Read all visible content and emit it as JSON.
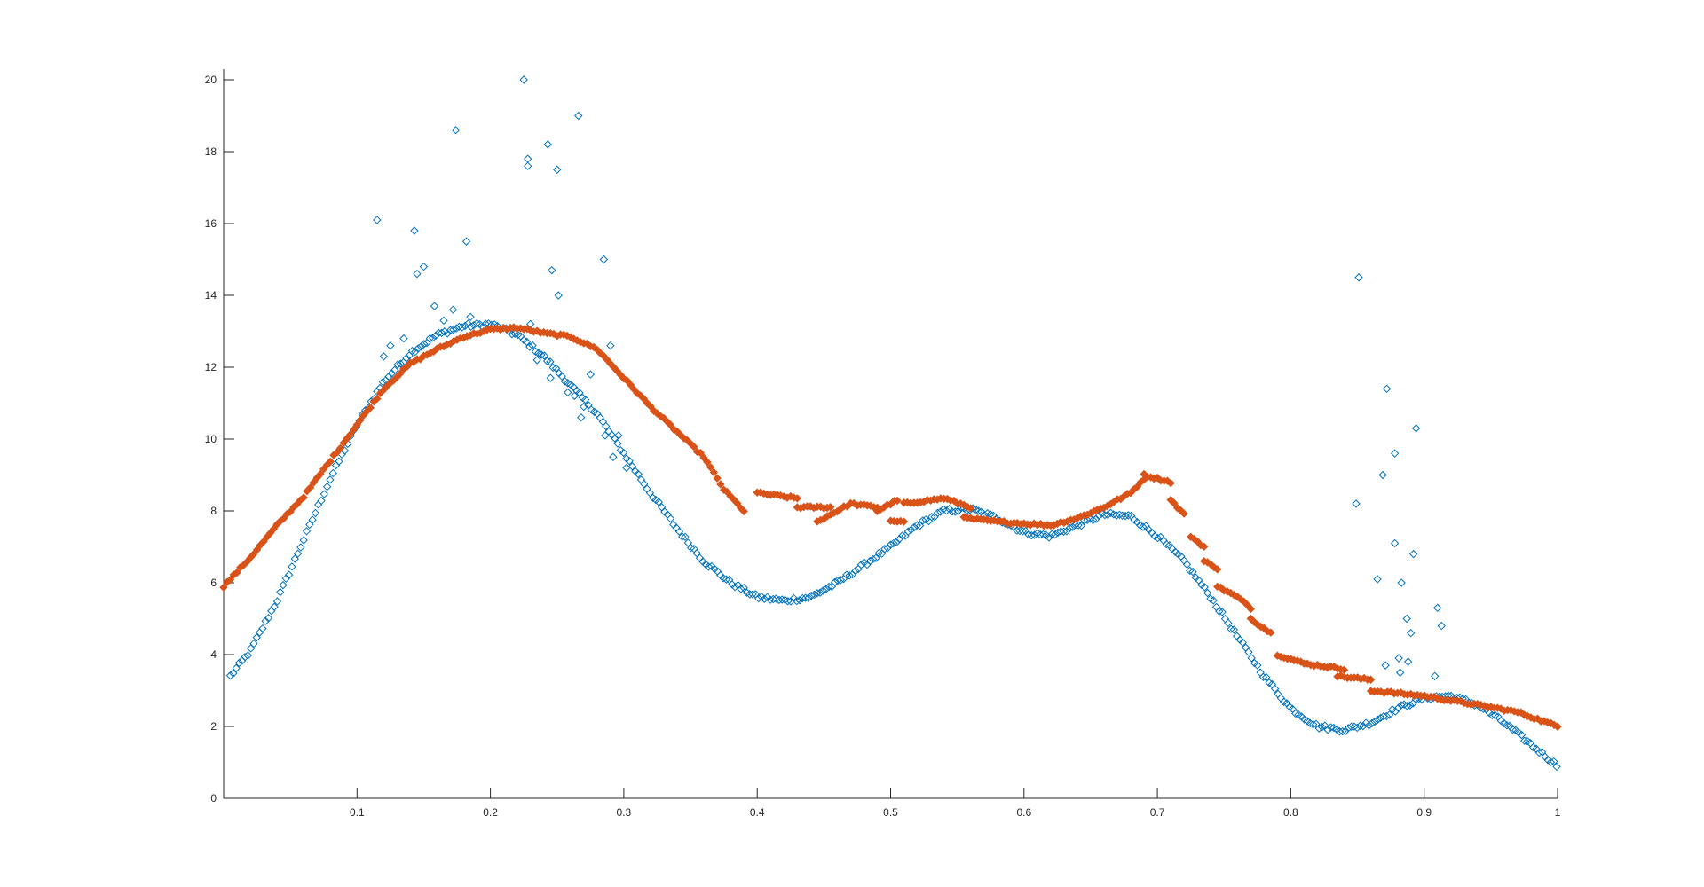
{
  "chart_data": {
    "type": "scatter",
    "title": "",
    "xlabel": "",
    "ylabel": "",
    "xlim": [
      0.0,
      1.0
    ],
    "ylim": [
      0,
      20
    ],
    "grid": false,
    "legend": "none",
    "x_ticks": [
      0.1,
      0.2,
      0.3,
      0.4,
      0.5,
      0.6,
      0.7,
      0.8,
      0.9,
      1.0
    ],
    "x_tick_labels": [
      "0.1",
      "0.2",
      "0.3",
      "0.4",
      "0.5",
      "0.6",
      "0.7",
      "0.8",
      "0.9",
      "1"
    ],
    "y_ticks": [
      0,
      2,
      4,
      6,
      8,
      10,
      12,
      14,
      16,
      18,
      20
    ],
    "y_tick_labels": [
      "0",
      "2",
      "4",
      "6",
      "8",
      "10",
      "12",
      "14",
      "16",
      "18",
      "20"
    ],
    "series": [
      {
        "marker": "diamond-open",
        "color": "#0072BD",
        "curve": [
          [
            0.005,
            3.4
          ],
          [
            0.02,
            4.1
          ],
          [
            0.04,
            5.5
          ],
          [
            0.06,
            7.2
          ],
          [
            0.08,
            8.9
          ],
          [
            0.1,
            10.4
          ],
          [
            0.12,
            11.6
          ],
          [
            0.14,
            12.4
          ],
          [
            0.16,
            12.9
          ],
          [
            0.18,
            13.15
          ],
          [
            0.2,
            13.2
          ],
          [
            0.22,
            12.9
          ],
          [
            0.24,
            12.3
          ],
          [
            0.26,
            11.5
          ],
          [
            0.28,
            10.7
          ],
          [
            0.3,
            9.6
          ],
          [
            0.32,
            8.5
          ],
          [
            0.34,
            7.5
          ],
          [
            0.36,
            6.6
          ],
          [
            0.38,
            6.0
          ],
          [
            0.4,
            5.6
          ],
          [
            0.42,
            5.5
          ],
          [
            0.44,
            5.6
          ],
          [
            0.46,
            6.0
          ],
          [
            0.48,
            6.5
          ],
          [
            0.5,
            7.0
          ],
          [
            0.52,
            7.6
          ],
          [
            0.54,
            8.0
          ],
          [
            0.56,
            8.05
          ],
          [
            0.58,
            7.8
          ],
          [
            0.6,
            7.4
          ],
          [
            0.62,
            7.3
          ],
          [
            0.64,
            7.6
          ],
          [
            0.66,
            7.9
          ],
          [
            0.68,
            7.85
          ],
          [
            0.7,
            7.3
          ],
          [
            0.72,
            6.6
          ],
          [
            0.74,
            5.6
          ],
          [
            0.76,
            4.5
          ],
          [
            0.78,
            3.4
          ],
          [
            0.8,
            2.5
          ],
          [
            0.82,
            2.0
          ],
          [
            0.84,
            1.9
          ],
          [
            0.86,
            2.1
          ],
          [
            0.88,
            2.5
          ],
          [
            0.9,
            2.8
          ],
          [
            0.92,
            2.85
          ],
          [
            0.94,
            2.6
          ],
          [
            0.96,
            2.1
          ],
          [
            0.98,
            1.5
          ],
          [
            1.0,
            0.9
          ]
        ],
        "outliers": [
          [
            0.225,
            20.0
          ],
          [
            0.266,
            19.0
          ],
          [
            0.174,
            18.6
          ],
          [
            0.243,
            18.2
          ],
          [
            0.228,
            17.8
          ],
          [
            0.228,
            17.6
          ],
          [
            0.25,
            17.5
          ],
          [
            0.115,
            16.1
          ],
          [
            0.143,
            15.8
          ],
          [
            0.182,
            15.5
          ],
          [
            0.285,
            15.0
          ],
          [
            0.15,
            14.8
          ],
          [
            0.145,
            14.6
          ],
          [
            0.246,
            14.7
          ],
          [
            0.251,
            14.0
          ],
          [
            0.851,
            14.5
          ],
          [
            0.872,
            11.4
          ],
          [
            0.894,
            10.3
          ],
          [
            0.878,
            9.6
          ],
          [
            0.869,
            9.0
          ],
          [
            0.849,
            8.2
          ],
          [
            0.878,
            7.1
          ],
          [
            0.892,
            6.8
          ],
          [
            0.865,
            6.1
          ],
          [
            0.883,
            6.0
          ],
          [
            0.91,
            5.3
          ],
          [
            0.887,
            5.0
          ],
          [
            0.913,
            4.8
          ],
          [
            0.89,
            4.6
          ],
          [
            0.881,
            3.9
          ],
          [
            0.871,
            3.7
          ],
          [
            0.888,
            3.8
          ],
          [
            0.908,
            3.4
          ],
          [
            0.882,
            3.5
          ],
          [
            0.27,
            10.9
          ],
          [
            0.286,
            10.1
          ],
          [
            0.296,
            10.1
          ],
          [
            0.292,
            9.5
          ],
          [
            0.302,
            9.2
          ],
          [
            0.263,
            11.2
          ],
          [
            0.258,
            11.3
          ],
          [
            0.268,
            10.6
          ],
          [
            0.245,
            11.7
          ],
          [
            0.275,
            11.8
          ],
          [
            0.29,
            12.6
          ],
          [
            0.12,
            12.3
          ],
          [
            0.125,
            12.6
          ],
          [
            0.135,
            12.8
          ],
          [
            0.165,
            13.3
          ],
          [
            0.158,
            13.7
          ],
          [
            0.172,
            13.6
          ],
          [
            0.185,
            13.4
          ],
          [
            0.23,
            13.2
          ],
          [
            0.235,
            12.2
          ]
        ]
      },
      {
        "marker": "diamond-filled",
        "color": "#D95319",
        "curve": [
          [
            0.0,
            5.9
          ],
          [
            0.02,
            6.7
          ],
          [
            0.04,
            7.6
          ],
          [
            0.06,
            8.4
          ],
          [
            0.08,
            9.4
          ],
          [
            0.1,
            10.4
          ],
          [
            0.12,
            11.4
          ],
          [
            0.14,
            12.1
          ],
          [
            0.16,
            12.5
          ],
          [
            0.18,
            12.85
          ],
          [
            0.2,
            13.05
          ],
          [
            0.22,
            13.1
          ],
          [
            0.24,
            12.95
          ],
          [
            0.26,
            12.85
          ],
          [
            0.28,
            12.5
          ],
          [
            0.3,
            11.7
          ],
          [
            0.32,
            10.9
          ],
          [
            0.34,
            10.2
          ],
          [
            0.36,
            9.5
          ],
          [
            0.375,
            8.6
          ],
          [
            0.39,
            8.0
          ]
        ],
        "segments": [
          [
            [
              0.4,
              8.5
            ],
            [
              0.43,
              8.35
            ]
          ],
          [
            [
              0.43,
              8.1
            ],
            [
              0.455,
              8.1
            ]
          ],
          [
            [
              0.445,
              7.7
            ],
            [
              0.47,
              8.2
            ],
            [
              0.49,
              8.1
            ]
          ],
          [
            [
              0.49,
              8.0
            ],
            [
              0.505,
              8.3
            ]
          ],
          [
            [
              0.5,
              7.7
            ],
            [
              0.51,
              7.7
            ]
          ],
          [
            [
              0.51,
              8.2
            ],
            [
              0.54,
              8.35
            ],
            [
              0.56,
              8.1
            ]
          ],
          [
            [
              0.555,
              7.8
            ],
            [
              0.58,
              7.7
            ],
            [
              0.6,
              7.65
            ],
            [
              0.62,
              7.6
            ],
            [
              0.64,
              7.8
            ],
            [
              0.66,
              8.1
            ],
            [
              0.68,
              8.5
            ],
            [
              0.69,
              8.9
            ]
          ],
          [
            [
              0.69,
              9.0
            ],
            [
              0.71,
              8.8
            ]
          ],
          [
            [
              0.71,
              8.3
            ],
            [
              0.72,
              7.9
            ]
          ],
          [
            [
              0.725,
              7.3
            ],
            [
              0.735,
              7.0
            ]
          ],
          [
            [
              0.735,
              6.6
            ],
            [
              0.745,
              6.4
            ]
          ],
          [
            [
              0.745,
              5.9
            ],
            [
              0.76,
              5.6
            ],
            [
              0.77,
              5.3
            ]
          ],
          [
            [
              0.77,
              5.0
            ],
            [
              0.785,
              4.6
            ]
          ],
          [
            [
              0.79,
              4.0
            ],
            [
              0.81,
              3.75
            ],
            [
              0.83,
              3.65
            ],
            [
              0.84,
              3.6
            ]
          ],
          [
            [
              0.835,
              3.4
            ],
            [
              0.86,
              3.3
            ]
          ],
          [
            [
              0.86,
              3.0
            ],
            [
              0.9,
              2.85
            ],
            [
              0.94,
              2.6
            ],
            [
              0.97,
              2.4
            ],
            [
              1.0,
              2.0
            ]
          ]
        ]
      }
    ]
  }
}
